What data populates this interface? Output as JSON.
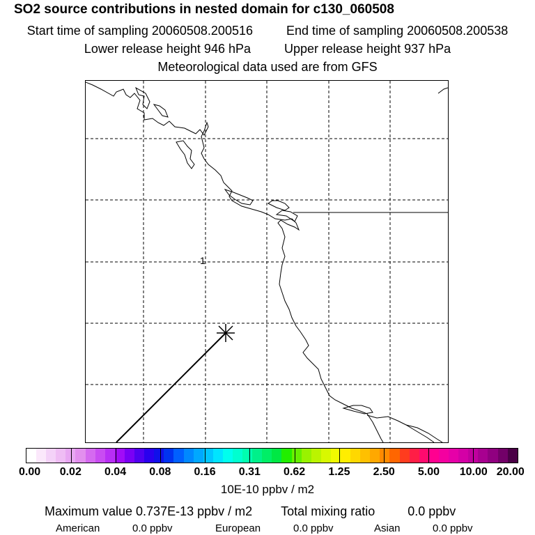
{
  "header": {
    "title": "SO2 source contributions in nested domain for c130_060508",
    "start_label": "Start time of sampling 20060508.200516",
    "end_label": "End time of sampling 20060508.200538",
    "lower_label": "Lower release height  946 hPa",
    "upper_label": "Upper release height  937 hPa",
    "met_label": "Meteorological data used are from GFS"
  },
  "map": {
    "contour_label": "1",
    "coastline_color": "#000000",
    "grid_style": "dashed",
    "track_marker": "star"
  },
  "colorbar": {
    "colors": [
      "#ffffff",
      "#fbe8fb",
      "#f4d2f8",
      "#efbdf4",
      "#e8a7f2",
      "#e28fee",
      "#d56af0",
      "#c94cf2",
      "#b82ef5",
      "#a10cf7",
      "#7a00f5",
      "#5000f0",
      "#2a00ee",
      "#1010ea",
      "#0033f0",
      "#0060ff",
      "#0088ff",
      "#00a8ff",
      "#00c6ff",
      "#00e4ff",
      "#00ffee",
      "#00ffd0",
      "#00ffb0",
      "#00f08a",
      "#00ee66",
      "#00e844",
      "#22ee00",
      "#66f000",
      "#99f200",
      "#bbf400",
      "#d8f800",
      "#f0fa00",
      "#ffee00",
      "#ffd800",
      "#ffc000",
      "#ffa800",
      "#ff8a00",
      "#ff6600",
      "#ff3c1e",
      "#ff1e46",
      "#ff0a6e",
      "#ff0090",
      "#f400a0",
      "#e600a8",
      "#d400a6",
      "#c0009e",
      "#a80090",
      "#900080",
      "#720068",
      "#4a0046"
    ],
    "ticks": [
      "0.00",
      "0.02",
      "0.04",
      "0.08",
      "0.16",
      "0.31",
      "0.62",
      "1.25",
      "2.50",
      "5.00",
      "10.00",
      "20.00"
    ],
    "unit": "10E-10 ppbv / m2"
  },
  "summary": {
    "max_label": "Maximum value  0.737E-13 ppbv / m2",
    "total_label": "Total mixing ratio",
    "total_value": "0.0 ppbv",
    "sources": [
      {
        "name": "American",
        "value": "0.0 ppbv"
      },
      {
        "name": "European",
        "value": "0.0 ppbv"
      },
      {
        "name": "Asian",
        "value": "0.0 ppbv"
      }
    ]
  }
}
